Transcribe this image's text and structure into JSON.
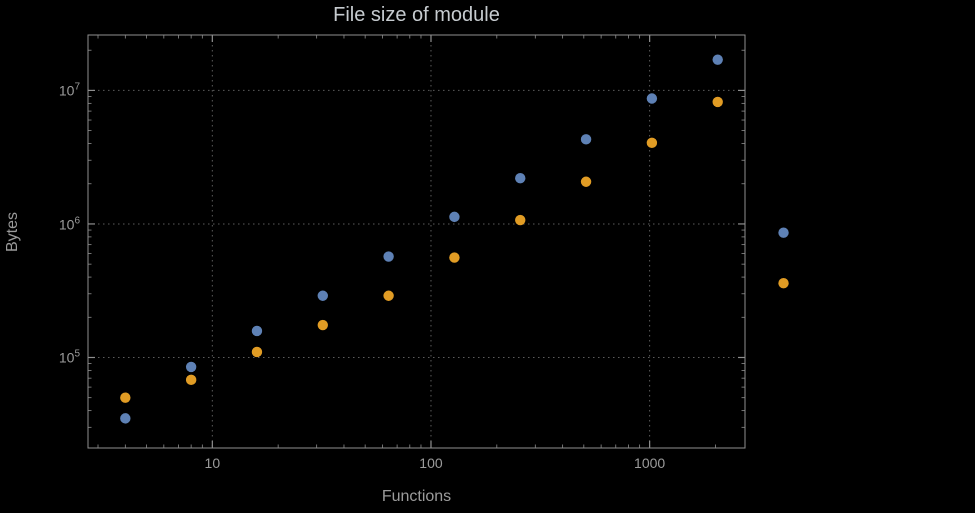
{
  "chart_data": {
    "type": "scatter",
    "title": "File size of module",
    "xlabel": "Functions",
    "ylabel": "Bytes",
    "x_scale": "log",
    "y_scale": "log",
    "xlim": [
      2.7,
      2730
    ],
    "ylim": [
      21000,
      26000000
    ],
    "grid": true,
    "grid_style": "dotted",
    "legend": "none",
    "x_ticks": [
      {
        "value": 10,
        "label": "10"
      },
      {
        "value": 100,
        "label": "100"
      },
      {
        "value": 1000,
        "label": "1000"
      }
    ],
    "y_ticks": [
      {
        "value": 100000,
        "base": "10",
        "exponent": "5"
      },
      {
        "value": 1000000,
        "base": "10",
        "exponent": "6"
      },
      {
        "value": 10000000,
        "base": "10",
        "exponent": "7"
      }
    ],
    "x": [
      4,
      8,
      16,
      32,
      64,
      128,
      256,
      512,
      1024,
      2048,
      4096
    ],
    "series": [
      {
        "id": "blue",
        "color": "#5e81b5",
        "values": [
          35000,
          85000,
          158000,
          290000,
          570000,
          1130000,
          2200000,
          4300000,
          8700000,
          17000000,
          860000
        ]
      },
      {
        "id": "orange",
        "color": "#e19c24",
        "values": [
          50000,
          68000,
          110000,
          175000,
          290000,
          560000,
          1070000,
          2070000,
          4050000,
          8200000,
          360000
        ]
      }
    ]
  },
  "style": {
    "background": "#000000",
    "frame_color": "#8f8f8f",
    "grid_color": "#5c5c5c",
    "tick_text_color": "#9b9b9b",
    "title_color": "#c6cbcf"
  }
}
